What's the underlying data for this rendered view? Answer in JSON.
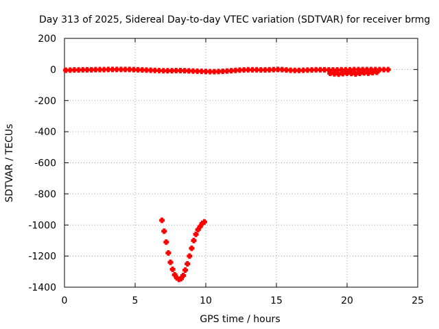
{
  "chart_data": {
    "type": "scatter",
    "title": "Day 313 of 2025, Sidereal Day-to-day VTEC variation (SDTVAR) for receiver brmg",
    "xlabel": "GPS time / hours",
    "ylabel": "SDTVAR / TECUs",
    "xlim": [
      0,
      25
    ],
    "ylim": [
      -1400,
      200
    ],
    "xticks": [
      0,
      5,
      10,
      15,
      20,
      25
    ],
    "yticks": [
      200,
      0,
      -200,
      -400,
      -600,
      -800,
      -1000,
      -1200,
      -1400
    ],
    "grid": true,
    "legend": "none",
    "marker": "plus",
    "series": [
      {
        "color": "#ff0000",
        "x": [
          0.1,
          0.4,
          0.7,
          1.0,
          1.3,
          1.6,
          1.9,
          2.2,
          2.5,
          2.8,
          3.1,
          3.4,
          3.7,
          4.0,
          4.3,
          4.6,
          4.9,
          5.2,
          5.5,
          5.8,
          6.1,
          6.4,
          6.7,
          7.0,
          7.3,
          7.6,
          7.9,
          8.2,
          8.5,
          8.8,
          9.1,
          9.4,
          9.7,
          10.0,
          10.3,
          10.6,
          10.9,
          11.2,
          11.5,
          11.8,
          12.1,
          12.4,
          12.7,
          13.0,
          13.3,
          13.6,
          13.9,
          14.2,
          14.5,
          14.8,
          15.1,
          15.4,
          15.7,
          16.0,
          16.3,
          16.6,
          16.9,
          17.2,
          17.5,
          17.8,
          18.1,
          18.4,
          18.7,
          19.0,
          19.3,
          19.6,
          19.9,
          20.2,
          20.5,
          20.8,
          21.1,
          21.4,
          21.7,
          22.0,
          22.3,
          22.6,
          22.9,
          6.9,
          7.05,
          7.2,
          7.35,
          7.5,
          7.65,
          7.8,
          7.95,
          8.1,
          8.25,
          8.4,
          8.55,
          8.7,
          8.85,
          9.0,
          9.15,
          9.3,
          9.45,
          9.6,
          9.75,
          9.9,
          18.8,
          19.1,
          19.4,
          19.7,
          20.0,
          20.3,
          20.6,
          20.9,
          21.2,
          21.5,
          21.8,
          22.1
        ],
        "y": [
          -5,
          -4,
          -3,
          -3,
          -2,
          -2,
          -2,
          -1,
          -1,
          -1,
          0,
          0,
          0,
          0,
          0,
          0,
          -1,
          -2,
          -3,
          -4,
          -5,
          -6,
          -7,
          -8,
          -8,
          -8,
          -7,
          -7,
          -8,
          -9,
          -10,
          -11,
          -12,
          -13,
          -14,
          -14,
          -13,
          -12,
          -10,
          -8,
          -6,
          -4,
          -3,
          -2,
          -2,
          -2,
          -3,
          -3,
          -2,
          -1,
          0,
          -1,
          -3,
          -5,
          -6,
          -6,
          -5,
          -4,
          -3,
          -2,
          -2,
          -2,
          -3,
          -3,
          -3,
          -2,
          -2,
          -2,
          -1,
          -1,
          -1,
          -1,
          -1,
          -1,
          -1,
          -1,
          -1,
          -970,
          -1040,
          -1110,
          -1180,
          -1240,
          -1285,
          -1320,
          -1340,
          -1350,
          -1345,
          -1325,
          -1290,
          -1250,
          -1200,
          -1150,
          -1100,
          -1060,
          -1030,
          -1010,
          -990,
          -980,
          -25,
          -28,
          -30,
          -27,
          -24,
          -26,
          -29,
          -25,
          -22,
          -24,
          -20,
          -18
        ]
      }
    ]
  }
}
